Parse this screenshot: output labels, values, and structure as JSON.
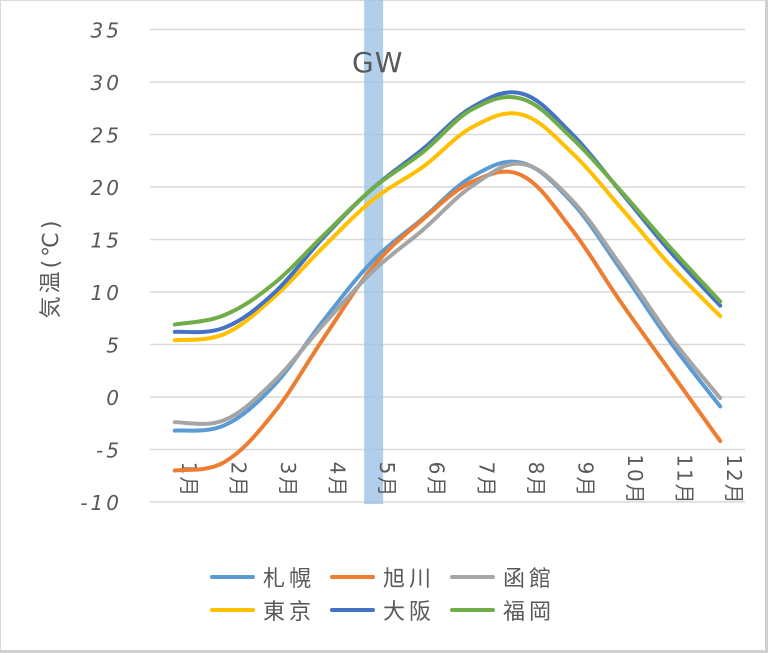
{
  "chart_data": {
    "type": "line",
    "title": "",
    "xlabel": "",
    "ylabel": "気温(℃)",
    "ylim": [
      -10,
      35
    ],
    "yticks": [
      35,
      30,
      25,
      20,
      15,
      10,
      5,
      0,
      -5,
      -10
    ],
    "ytick_labels": [
      "35",
      "30",
      "25",
      "20",
      "15",
      "10",
      "5",
      "0",
      "-5",
      "-10"
    ],
    "categories": [
      "1月",
      "2月",
      "3月",
      "4月",
      "5月",
      "6月",
      "7月",
      "8月",
      "9月",
      "10月",
      "11月",
      "12月"
    ],
    "grid": true,
    "legend_position": "bottom",
    "annotations": [
      {
        "label": "GW",
        "type": "vertical-band",
        "x_category": "5月",
        "color": "#9dc3e6"
      }
    ],
    "series": [
      {
        "name": "札幌",
        "color": "#5b9bd5",
        "values": [
          -3.2,
          -2.7,
          1.1,
          7.3,
          13.0,
          17.0,
          21.0,
          22.3,
          18.6,
          12.1,
          5.2,
          -0.9
        ]
      },
      {
        "name": "旭川",
        "color": "#ed7d31",
        "values": [
          -7.0,
          -6.2,
          -1.5,
          5.6,
          12.4,
          16.9,
          20.5,
          21.1,
          16.0,
          9.0,
          2.4,
          -4.2
        ]
      },
      {
        "name": "函館",
        "color": "#a5a5a5",
        "values": [
          -2.4,
          -2.2,
          1.5,
          6.9,
          12.0,
          15.9,
          20.1,
          22.2,
          18.8,
          12.5,
          5.7,
          -0.1
        ]
      },
      {
        "name": "東京",
        "color": "#ffc000",
        "values": [
          5.4,
          6.0,
          9.5,
          14.3,
          18.8,
          21.9,
          25.7,
          26.9,
          23.3,
          18.0,
          12.5,
          7.7
        ]
      },
      {
        "name": "大阪",
        "color": "#4472c4",
        "values": [
          6.2,
          6.6,
          9.9,
          15.2,
          19.9,
          23.6,
          27.6,
          28.9,
          25.1,
          19.5,
          13.8,
          8.7
        ]
      },
      {
        "name": "福岡",
        "color": "#70ad47",
        "values": [
          6.9,
          7.8,
          10.8,
          15.4,
          19.9,
          23.3,
          27.4,
          28.4,
          24.7,
          19.6,
          14.2,
          9.1
        ]
      }
    ]
  },
  "legend": {
    "rows": [
      [
        {
          "label": "札幌",
          "color": "#5b9bd5"
        },
        {
          "label": "旭川",
          "color": "#ed7d31"
        },
        {
          "label": "函館",
          "color": "#a5a5a5"
        }
      ],
      [
        {
          "label": "東京",
          "color": "#ffc000"
        },
        {
          "label": "大阪",
          "color": "#4472c4"
        },
        {
          "label": "福岡",
          "color": "#70ad47"
        }
      ]
    ]
  },
  "annotation": {
    "gw_label": "GW"
  },
  "axis": {
    "ylabel": "気温(℃)"
  },
  "colors": {
    "grid": "#d9d9d9",
    "text": "#595959",
    "band": "#9dc3e6"
  }
}
